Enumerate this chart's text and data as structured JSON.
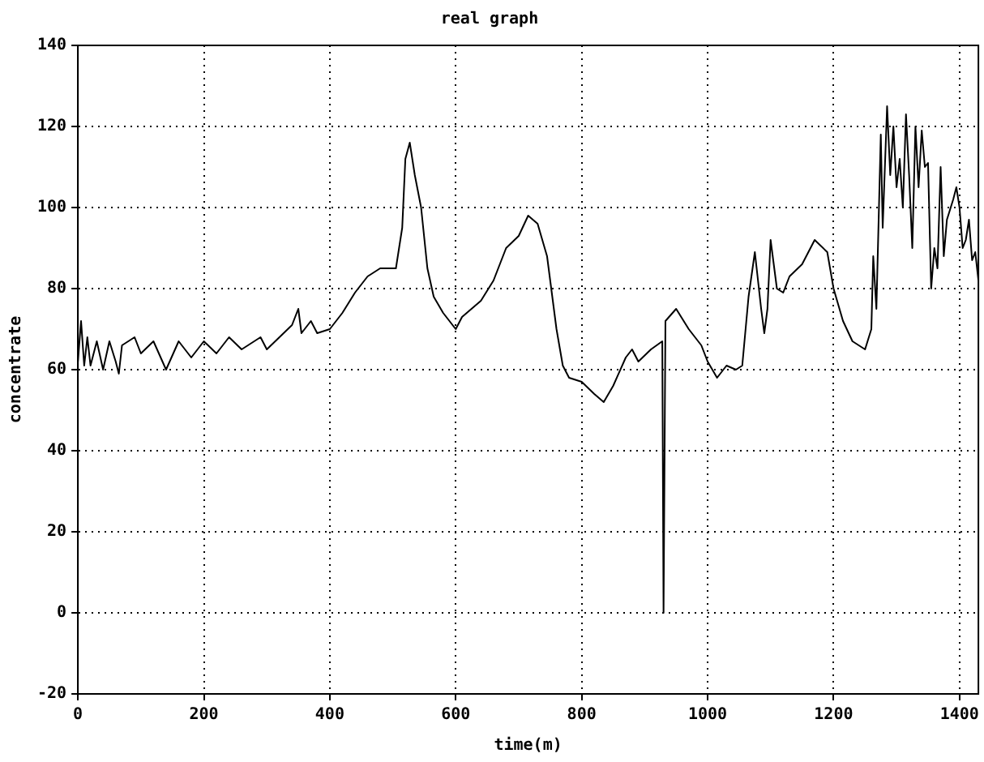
{
  "chart_data": {
    "type": "line",
    "title": "real graph",
    "xlabel": "time(m)",
    "ylabel": "concentrate",
    "x": [
      0,
      5,
      10,
      15,
      20,
      30,
      40,
      50,
      60,
      65,
      70,
      90,
      100,
      120,
      140,
      160,
      180,
      200,
      220,
      240,
      260,
      290,
      300,
      320,
      340,
      350,
      355,
      370,
      380,
      400,
      420,
      440,
      460,
      480,
      505,
      515,
      520,
      527,
      535,
      545,
      555,
      565,
      580,
      600,
      610,
      640,
      660,
      680,
      700,
      715,
      730,
      745,
      760,
      770,
      780,
      800,
      820,
      835,
      850,
      870,
      880,
      890,
      910,
      928,
      930,
      933,
      950,
      970,
      990,
      1000,
      1015,
      1030,
      1045,
      1055,
      1065,
      1075,
      1085,
      1090,
      1095,
      1100,
      1110,
      1120,
      1130,
      1150,
      1170,
      1190,
      1200,
      1215,
      1230,
      1250,
      1260,
      1263,
      1268,
      1275,
      1278,
      1285,
      1290,
      1295,
      1300,
      1305,
      1310,
      1315,
      1320,
      1325,
      1330,
      1335,
      1340,
      1345,
      1350,
      1355,
      1360,
      1365,
      1370,
      1375,
      1380,
      1390,
      1395,
      1400,
      1405,
      1410,
      1415,
      1420,
      1425,
      1430
    ],
    "series": [
      {
        "color": "#000000",
        "values": [
          62,
          72,
          61,
          68,
          61,
          67,
          60,
          67,
          62,
          59,
          66,
          68,
          64,
          67,
          60,
          67,
          63,
          67,
          64,
          68,
          65,
          68,
          65,
          68,
          71,
          75,
          69,
          72,
          69,
          70,
          74,
          79,
          83,
          85,
          85,
          95,
          112,
          116,
          108,
          100,
          85,
          78,
          74,
          70,
          73,
          77,
          82,
          90,
          93,
          98,
          96,
          88,
          70,
          61,
          58,
          57,
          54,
          52,
          56,
          63,
          65,
          62,
          65,
          67,
          0,
          72,
          75,
          70,
          66,
          62,
          58,
          61,
          60,
          61,
          78,
          89,
          75,
          69,
          75,
          92,
          80,
          79,
          83,
          86,
          92,
          89,
          80,
          72,
          67,
          65,
          70,
          88,
          75,
          118,
          95,
          125,
          108,
          120,
          105,
          112,
          100,
          123,
          108,
          90,
          120,
          105,
          119,
          110,
          111,
          80,
          90,
          85,
          110,
          88,
          97,
          102,
          105,
          100,
          90,
          92,
          97,
          87,
          89,
          82
        ]
      }
    ],
    "xlim": [
      0,
      1430
    ],
    "xticks": [
      0,
      200,
      400,
      600,
      800,
      1000,
      1200,
      1400
    ],
    "ylim": [
      -20,
      140
    ],
    "yticks": [
      -20,
      0,
      20,
      40,
      60,
      80,
      100,
      120,
      140
    ],
    "grid": true,
    "legend": false,
    "marker": "none",
    "line_style": "solid"
  }
}
